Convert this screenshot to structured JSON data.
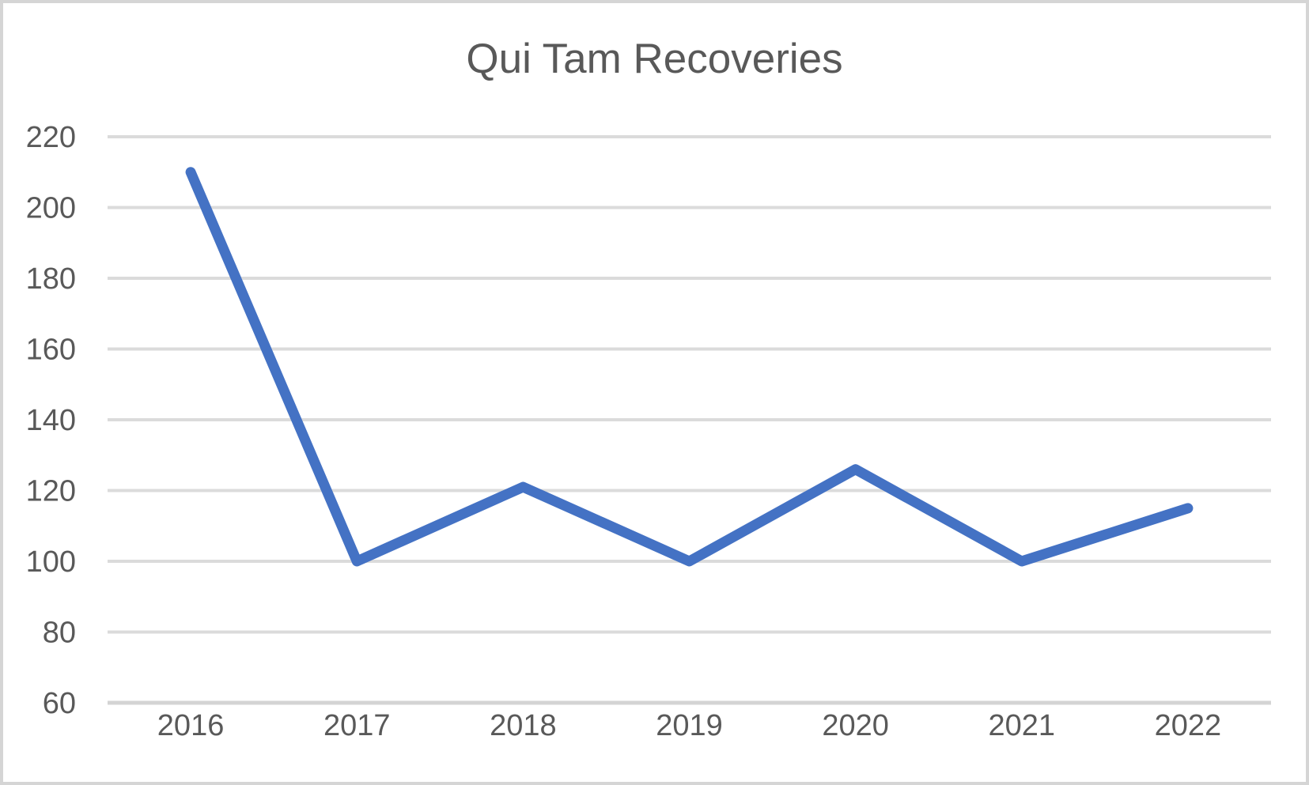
{
  "window": {
    "background": "#ffffff",
    "border_color": "#d5d5d5"
  },
  "chart_data": {
    "type": "line",
    "title": "Qui Tam Recoveries",
    "categories": [
      "2016",
      "2017",
      "2018",
      "2019",
      "2020",
      "2021",
      "2022"
    ],
    "values": [
      210,
      100,
      121,
      100,
      126,
      100,
      115
    ],
    "xlabel": "",
    "ylabel": "",
    "ylim": [
      60,
      220
    ],
    "ytick_step": 20,
    "yticks": [
      60,
      80,
      100,
      120,
      140,
      160,
      180,
      200,
      220
    ],
    "grid": true,
    "legend": "none",
    "line_color": "#4472C4",
    "gridline_color": "#DBDBDB",
    "axis_line_color": "#D4D4D4",
    "text_color": "#595959"
  }
}
